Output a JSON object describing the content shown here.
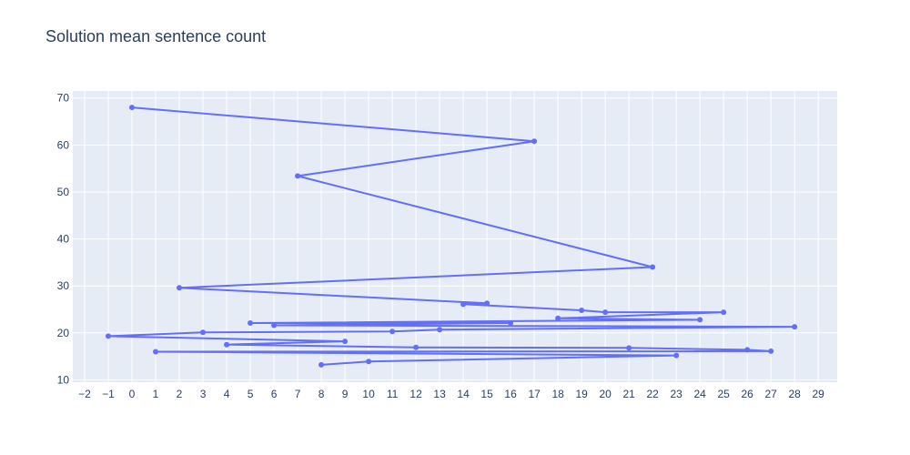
{
  "chart_data": {
    "type": "line",
    "title": "Solution mean sentence count",
    "xlabel": "",
    "ylabel": "",
    "grid": true,
    "xlim": [
      -2.5,
      29.8
    ],
    "ylim": [
      9.5,
      71.5
    ],
    "x_ticks": [
      -2,
      -1,
      0,
      1,
      2,
      3,
      4,
      5,
      6,
      7,
      8,
      9,
      10,
      11,
      12,
      13,
      14,
      15,
      16,
      17,
      18,
      19,
      20,
      21,
      22,
      23,
      24,
      25,
      26,
      27,
      28,
      29
    ],
    "y_ticks": [
      10,
      20,
      30,
      40,
      50,
      60,
      70
    ],
    "colors": {
      "line": "#636efa",
      "plot_bg": "#e5ecf6",
      "grid": "#ffffff",
      "text": "#2a3f5f"
    },
    "series": [
      {
        "x": [
          0,
          17,
          7,
          22,
          2,
          15,
          14,
          19,
          20,
          25,
          18,
          24,
          5,
          16,
          6,
          28,
          13,
          11,
          3,
          -1,
          9,
          4,
          12,
          21,
          26,
          27,
          1,
          23,
          10,
          8
        ],
        "y": [
          68.0,
          60.8,
          53.4,
          34.0,
          29.6,
          26.3,
          26.1,
          24.8,
          24.4,
          24.4,
          23.1,
          22.8,
          22.1,
          22.1,
          21.6,
          21.3,
          20.7,
          20.3,
          20.1,
          19.3,
          18.2,
          17.5,
          16.9,
          16.8,
          16.4,
          16.1,
          16.0,
          15.2,
          13.9,
          13.2
        ]
      }
    ]
  }
}
